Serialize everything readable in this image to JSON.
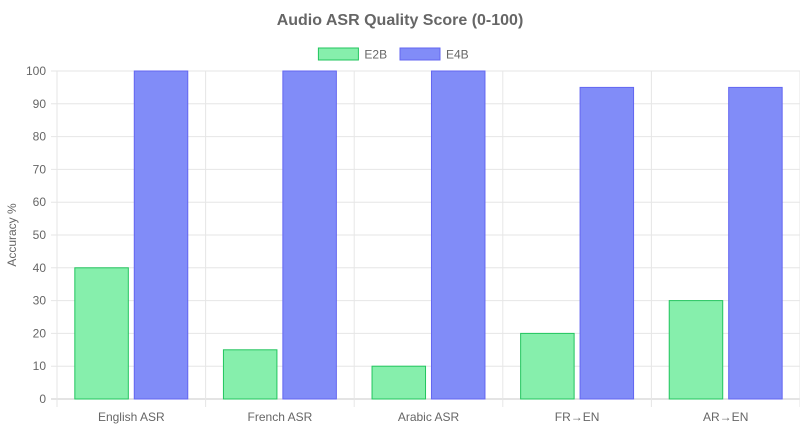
{
  "chart_data": {
    "type": "bar",
    "title": "Audio ASR Quality Score (0-100)",
    "ylabel": "Accuracy %",
    "xlabel": "",
    "categories": [
      "English ASR",
      "French ASR",
      "Arabic ASR",
      "FR→EN",
      "AR→EN"
    ],
    "series": [
      {
        "name": "E2B",
        "values": [
          40,
          15,
          10,
          20,
          30
        ],
        "fill": "#86efac",
        "stroke": "#22c55e"
      },
      {
        "name": "E4B",
        "values": [
          100,
          100,
          100,
          95,
          95
        ],
        "fill": "#818cf8",
        "stroke": "#6366f1"
      }
    ],
    "ylim": [
      0,
      100
    ],
    "yticks": [
      0,
      10,
      20,
      30,
      40,
      50,
      60,
      70,
      80,
      90,
      100
    ],
    "grid": true,
    "legend_position": "top-center"
  }
}
